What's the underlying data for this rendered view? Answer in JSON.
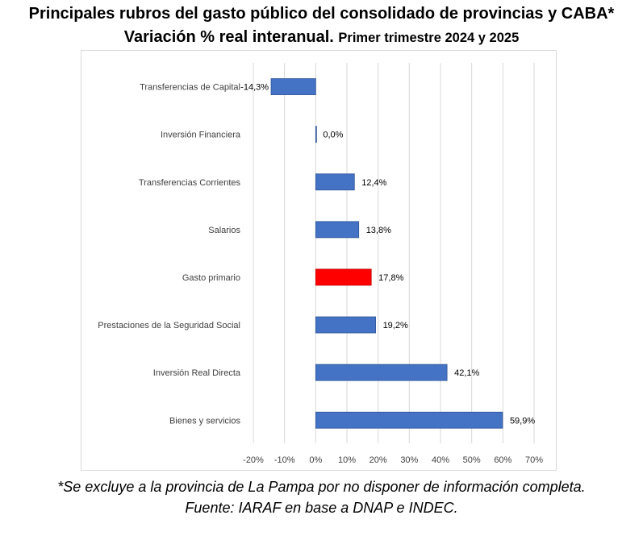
{
  "title_line1": "Principales rubros del gasto público del consolidado de provincias y CABA*",
  "title_line2_main": "Variación % real interanual.",
  "title_line2_sub": "Primer trimestre 2024 y 2025",
  "footnote_line1": "*Se excluye a la provincia de La Pampa por no disponer de información completa.",
  "footnote_line2": "Fuente: IARAF en base a DNAP e INDEC.",
  "colors": {
    "bar": "#4472c4",
    "highlight": "#ff0000",
    "grid": "#d9d9d9"
  },
  "chart_data": {
    "type": "bar",
    "orientation": "horizontal",
    "categories": [
      "Transferencias de Capital",
      "Inversión Financiera",
      "Transferencias Corrientes",
      "Salarios",
      "Gasto primario",
      "Prestaciones de la Seguridad Social",
      "Inversión Real Directa",
      "Bienes y servicios"
    ],
    "values": [
      -14.3,
      0.0,
      12.4,
      13.8,
      17.8,
      19.2,
      42.1,
      59.9
    ],
    "value_labels": [
      "-14,3%",
      "0,0%",
      "12,4%",
      "13,8%",
      "17,8%",
      "19,2%",
      "42,1%",
      "59,9%"
    ],
    "highlight_category": "Gasto primario",
    "xlim": [
      -20,
      70
    ],
    "xticks": [
      -20,
      -10,
      0,
      10,
      20,
      30,
      40,
      50,
      60,
      70
    ],
    "xtick_labels": [
      "-20%",
      "-10%",
      "0%",
      "10%",
      "20%",
      "30%",
      "40%",
      "50%",
      "60%",
      "70%"
    ],
    "grid": "vertical",
    "legend": "none"
  }
}
